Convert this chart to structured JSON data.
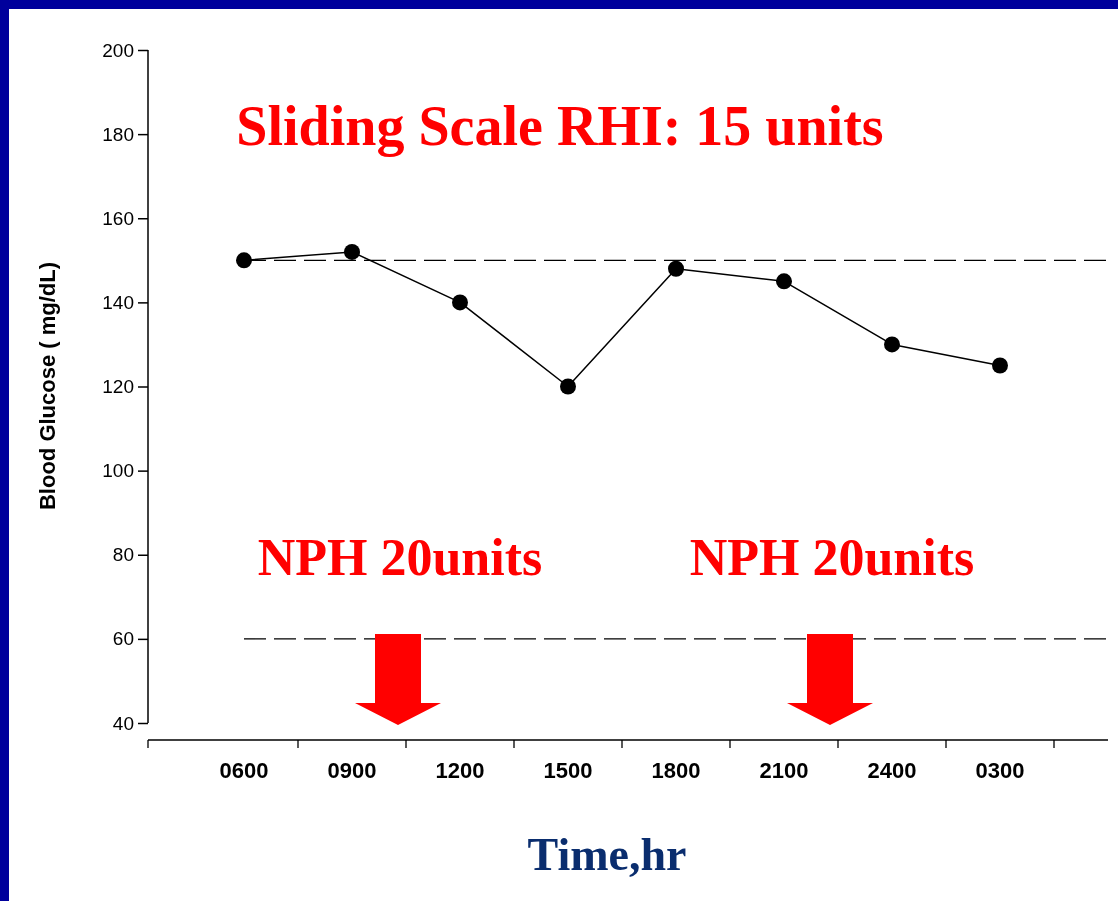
{
  "chart_data": {
    "type": "line",
    "xlabel": "Time,hr",
    "ylabel": "Blood Glucose ( mg/dL)",
    "categories": [
      "0600",
      "0900",
      "1200",
      "1500",
      "1800",
      "2100",
      "2400",
      "0300"
    ],
    "series": [
      {
        "color": "#000000",
        "values": [
          150,
          152,
          140,
          120,
          148,
          145,
          130,
          125
        ]
      }
    ],
    "ylim": [
      40,
      200
    ],
    "yticks": [
      40,
      60,
      80,
      100,
      120,
      140,
      160,
      180,
      200
    ],
    "ref_lines": [
      {
        "axis": "y",
        "value": 150,
        "color": "#000000",
        "line_style": "dashed"
      },
      {
        "axis": "y",
        "value": 60,
        "color": "#000000",
        "line_style": "dashed"
      }
    ],
    "annotations": [
      "Sliding Scale RHI: 15 units",
      "NPH 20units",
      "NPH 20units"
    ],
    "marker": "circle",
    "line_style": "solid",
    "grid": false
  }
}
